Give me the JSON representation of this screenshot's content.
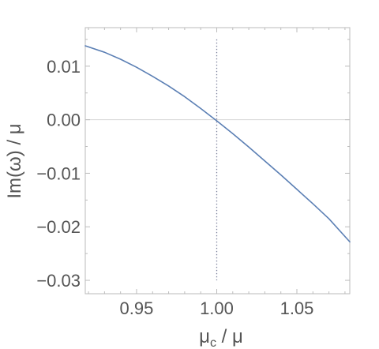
{
  "chart_data": {
    "type": "line",
    "title": "",
    "xlabel_main": "μ",
    "xlabel_sub": "c",
    "xlabel_tail": " / μ",
    "ylabel": "Im(ω) / μ",
    "xlim": [
      0.918,
      1.083
    ],
    "ylim": [
      -0.0325,
      0.0172
    ],
    "x_ticks": [
      {
        "value": 0.95,
        "label": "0.95"
      },
      {
        "value": 1.0,
        "label": "1.00"
      },
      {
        "value": 1.05,
        "label": "1.05"
      }
    ],
    "y_ticks": [
      {
        "value": 0.01,
        "label": "0.01"
      },
      {
        "value": 0.0,
        "label": "0.00"
      },
      {
        "value": -0.01,
        "label": "−0.01"
      },
      {
        "value": -0.02,
        "label": "−0.02"
      },
      {
        "value": -0.03,
        "label": "−0.03"
      }
    ],
    "minor_x_ticks": [
      0.92,
      0.93,
      0.94,
      0.96,
      0.97,
      0.98,
      0.99,
      1.01,
      1.02,
      1.03,
      1.04,
      1.06,
      1.07,
      1.08
    ],
    "minor_y_ticks": [
      0.015,
      0.005,
      -0.005,
      -0.015,
      -0.025
    ],
    "reference_lines": {
      "horizontal_y": 0.0,
      "vertical_x": 1.0,
      "vertical_range": [
        -0.03,
        0.015
      ],
      "vertical_style": "dotted"
    },
    "grid": false,
    "series": [
      {
        "x": [
          0.918,
          0.93,
          0.94,
          0.95,
          0.96,
          0.97,
          0.98,
          0.99,
          1.0,
          1.01,
          1.02,
          1.03,
          1.04,
          1.05,
          1.06,
          1.07,
          1.083
        ],
        "y": [
          0.0138,
          0.0126,
          0.0113,
          0.0098,
          0.0081,
          0.0063,
          0.0043,
          0.0021,
          -0.0002,
          -0.0026,
          -0.0051,
          -0.0077,
          -0.0103,
          -0.013,
          -0.0157,
          -0.0185,
          -0.0228
        ]
      }
    ],
    "colors": {
      "line": "#5b7fb4",
      "frame": "#bbbbbb",
      "zero_line": "#d4d4d4",
      "dotted_line": "#7a7f9a",
      "text": "#555555"
    }
  }
}
